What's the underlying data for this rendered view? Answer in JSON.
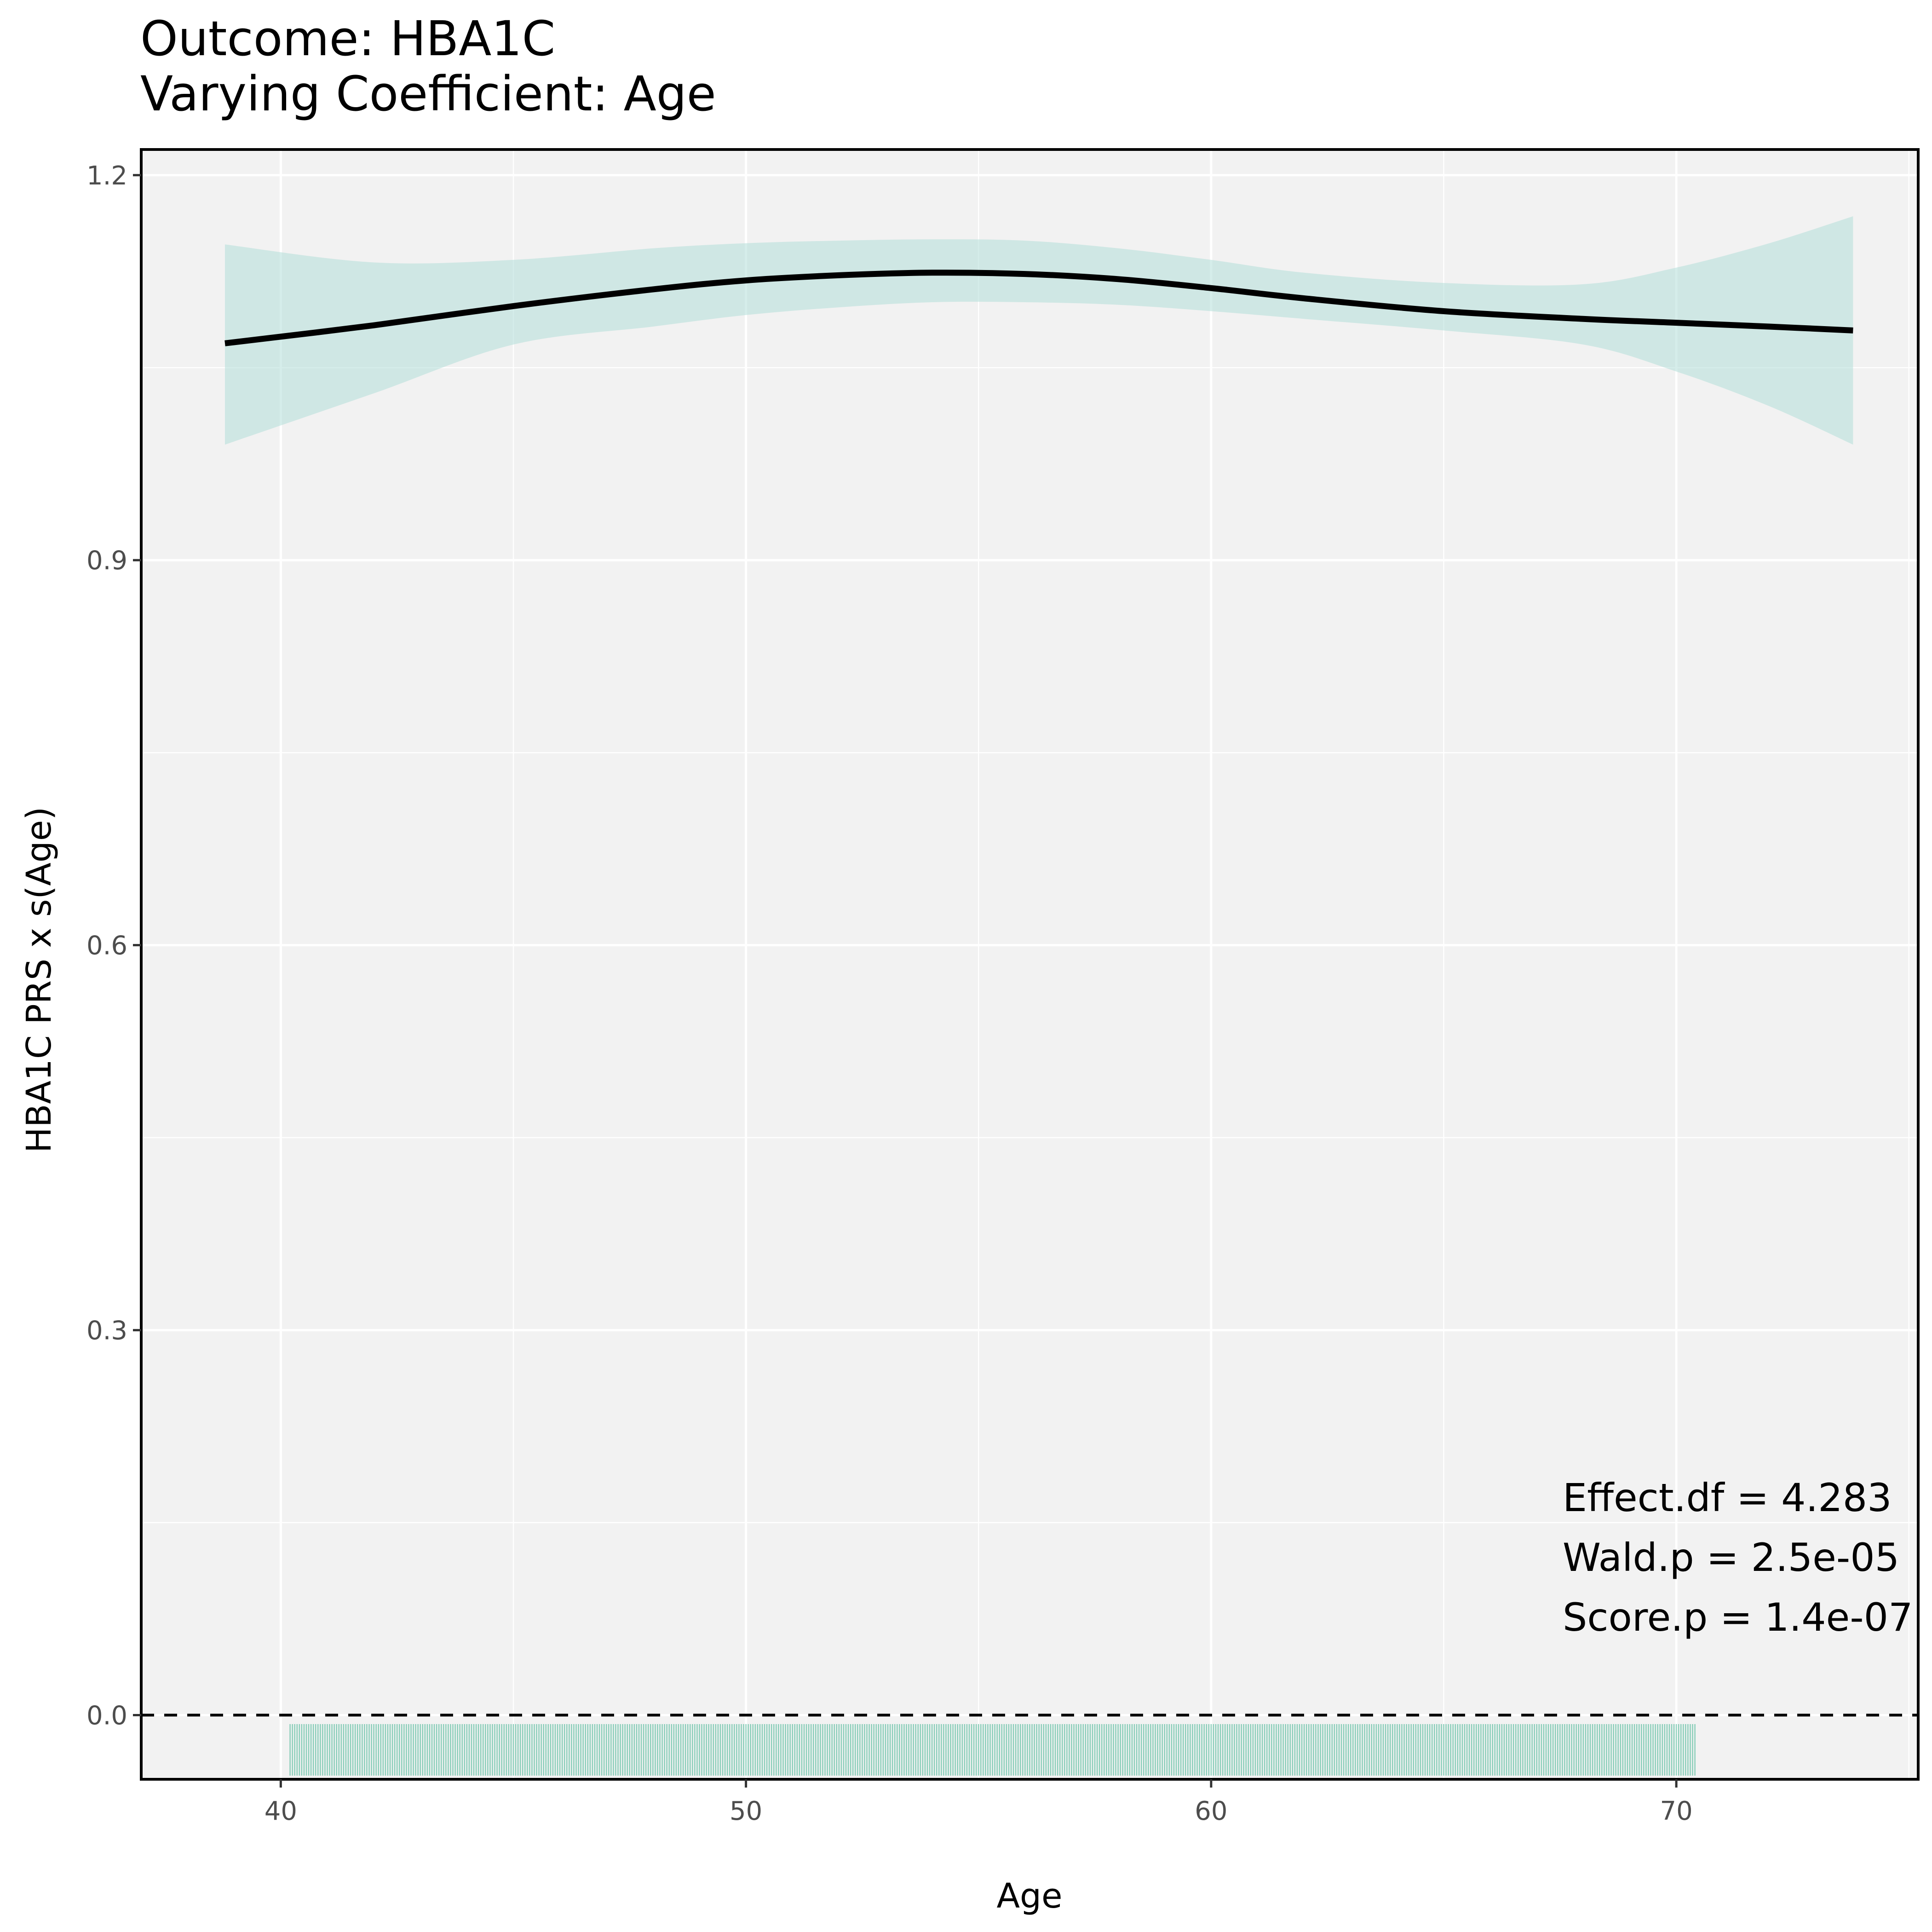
{
  "chart_data": {
    "type": "line",
    "title": "Outcome: HBA1C",
    "subtitle": "Varying Coefficient: Age",
    "xlabel": "Age",
    "ylabel": "HBA1C PRS x s(Age)",
    "xlim": [
      37,
      75.2
    ],
    "ylim": [
      -0.05,
      1.22
    ],
    "x_ticks": [
      40,
      50,
      60,
      70
    ],
    "x_tick_labels": [
      "40",
      "50",
      "60",
      "70"
    ],
    "y_ticks": [
      0.0,
      0.3,
      0.6,
      0.9,
      1.2
    ],
    "y_tick_labels": [
      "0.0",
      "0.3",
      "0.6",
      "0.9",
      "1.2"
    ],
    "grid": true,
    "reference_line": {
      "y": 0.0,
      "style": "dashed"
    },
    "series": [
      {
        "x": [
          38.8,
          42,
          45,
          48,
          50,
          52,
          54,
          56,
          58,
          60,
          62,
          65,
          68,
          70,
          72,
          73.8
        ],
        "y": [
          1.069,
          1.083,
          1.098,
          1.111,
          1.118,
          1.122,
          1.124,
          1.123,
          1.119,
          1.112,
          1.104,
          1.094,
          1.088,
          1.085,
          1.082,
          1.079
        ],
        "lower": [
          0.99,
          1.03,
          1.068,
          1.082,
          1.091,
          1.097,
          1.101,
          1.101,
          1.099,
          1.094,
          1.088,
          1.079,
          1.068,
          1.047,
          1.02,
          0.99
        ],
        "upper": [
          1.146,
          1.132,
          1.134,
          1.143,
          1.147,
          1.149,
          1.15,
          1.149,
          1.143,
          1.134,
          1.124,
          1.116,
          1.115,
          1.128,
          1.147,
          1.168
        ]
      }
    ],
    "rug": {
      "x_min": 40.2,
      "x_max": 70.4
    },
    "annotations": [
      "Effect.df = 4.283",
      "Wald.p = 2.5e-05",
      "Score.p = 1.4e-07"
    ],
    "colors": {
      "line": "#000000",
      "ribbon": "#b2dfd8",
      "rug": "#66c2a5",
      "panel": "#f2f2f2",
      "grid": "#ffffff"
    }
  }
}
